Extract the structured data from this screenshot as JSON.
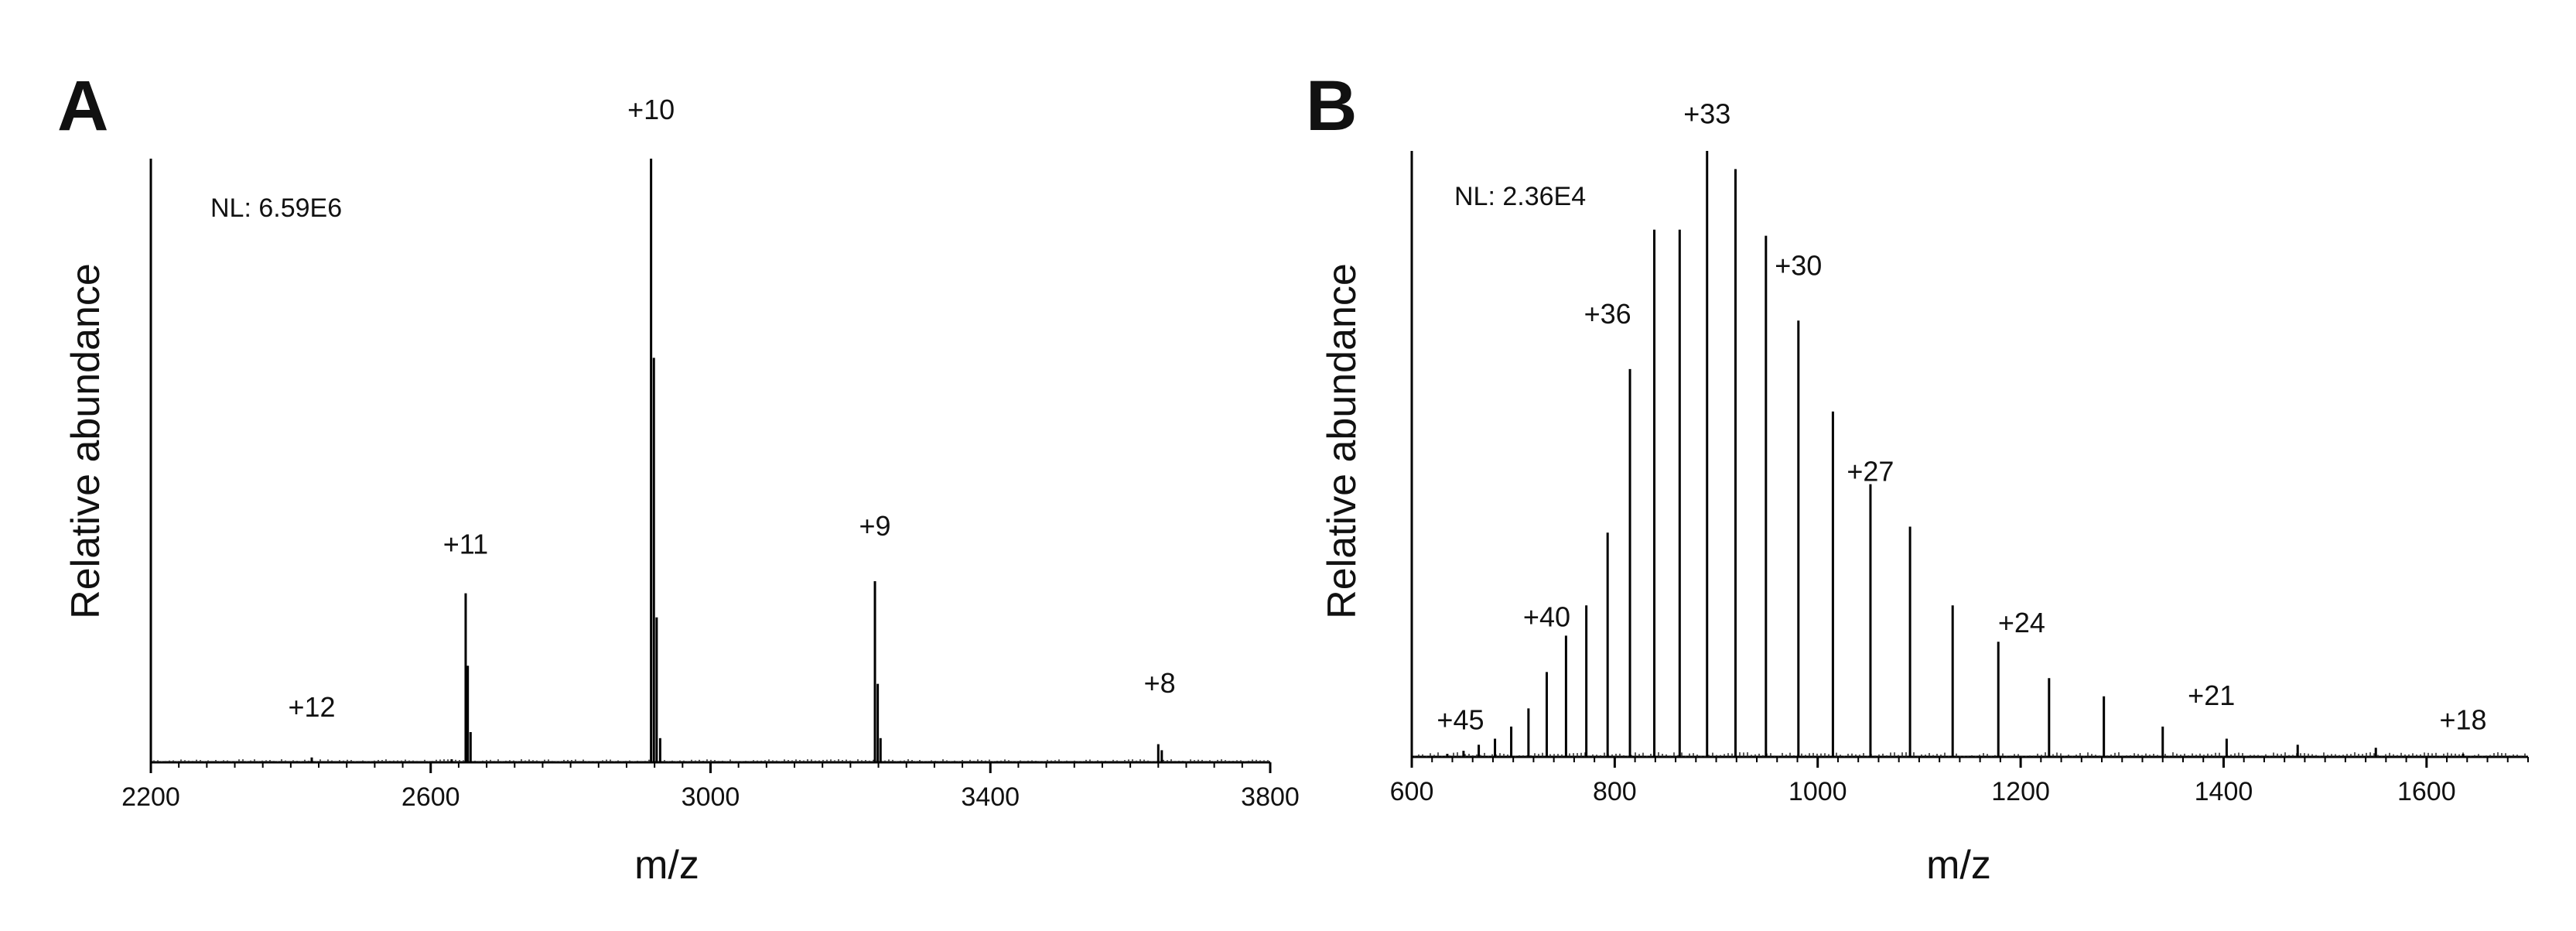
{
  "chart_data": [
    {
      "type": "bar",
      "panel": "A",
      "nl": "NL: 6.59E6",
      "xlabel": "m/z",
      "ylabel": "Relative abundance",
      "xlim": [
        2200,
        3800
      ],
      "ylim": [
        0,
        100
      ],
      "xticks": [
        2200,
        2600,
        3000,
        3400,
        3800
      ],
      "tick_labels": [
        "2200",
        "2600",
        "3000",
        "3400",
        "3800"
      ],
      "grid": false,
      "peaks": [
        {
          "mz": 2430,
          "rel": 0.8
        },
        {
          "mz": 2630,
          "rel": 0.5
        },
        {
          "mz": 2650,
          "rel": 28
        },
        {
          "mz": 2653,
          "rel": 16
        },
        {
          "mz": 2657,
          "rel": 5
        },
        {
          "mz": 2915,
          "rel": 100
        },
        {
          "mz": 2919,
          "rel": 67
        },
        {
          "mz": 2923,
          "rel": 24
        },
        {
          "mz": 2928,
          "rel": 4
        },
        {
          "mz": 3235,
          "rel": 30
        },
        {
          "mz": 3239,
          "rel": 13
        },
        {
          "mz": 3243,
          "rel": 4
        },
        {
          "mz": 3640,
          "rel": 3
        },
        {
          "mz": 3645,
          "rel": 2
        }
      ],
      "annotations": [
        {
          "text": "+12",
          "mz": 2430,
          "rel": 6
        },
        {
          "text": "+11",
          "mz": 2650,
          "rel": 33
        },
        {
          "text": "+10",
          "mz": 2915,
          "rel": 105
        },
        {
          "text": "+9",
          "mz": 3235,
          "rel": 36
        },
        {
          "text": "+8",
          "mz": 3642,
          "rel": 10
        }
      ]
    },
    {
      "type": "bar",
      "panel": "B",
      "nl": "NL: 2.36E4",
      "xlabel": "m/z",
      "ylabel": "Relative abundance",
      "xlim": [
        600,
        1700
      ],
      "ylim": [
        0,
        100
      ],
      "xticks": [
        600,
        800,
        1000,
        1200,
        1400,
        1600
      ],
      "tick_labels": [
        "600",
        "800",
        "1000",
        "1200",
        "1400",
        "1600"
      ],
      "grid": false,
      "peaks": [
        {
          "mz": 635,
          "rel": 0.5
        },
        {
          "mz": 651,
          "rel": 1
        },
        {
          "mz": 666,
          "rel": 2
        },
        {
          "mz": 682,
          "rel": 3
        },
        {
          "mz": 698,
          "rel": 5
        },
        {
          "mz": 715,
          "rel": 8
        },
        {
          "mz": 733,
          "rel": 14
        },
        {
          "mz": 752,
          "rel": 20
        },
        {
          "mz": 772,
          "rel": 25
        },
        {
          "mz": 793,
          "rel": 37
        },
        {
          "mz": 815,
          "rel": 64
        },
        {
          "mz": 839,
          "rel": 87
        },
        {
          "mz": 864,
          "rel": 87
        },
        {
          "mz": 891,
          "rel": 100
        },
        {
          "mz": 919,
          "rel": 97
        },
        {
          "mz": 949,
          "rel": 86
        },
        {
          "mz": 981,
          "rel": 72
        },
        {
          "mz": 1015,
          "rel": 57
        },
        {
          "mz": 1052,
          "rel": 45
        },
        {
          "mz": 1091,
          "rel": 38
        },
        {
          "mz": 1133,
          "rel": 25
        },
        {
          "mz": 1178,
          "rel": 19
        },
        {
          "mz": 1228,
          "rel": 13
        },
        {
          "mz": 1282,
          "rel": 10
        },
        {
          "mz": 1340,
          "rel": 5
        },
        {
          "mz": 1403,
          "rel": 3
        },
        {
          "mz": 1473,
          "rel": 2
        },
        {
          "mz": 1550,
          "rel": 1.5
        },
        {
          "mz": 1636,
          "rel": 0.5
        }
      ],
      "annotations": [
        {
          "text": "+45",
          "mz": 648,
          "rel": 3
        },
        {
          "text": "+40",
          "mz": 733,
          "rel": 20
        },
        {
          "text": "+36",
          "mz": 793,
          "rel": 70
        },
        {
          "text": "+33",
          "mz": 891,
          "rel": 103
        },
        {
          "text": "+30",
          "mz": 981,
          "rel": 78
        },
        {
          "text": "+27",
          "mz": 1052,
          "rel": 44
        },
        {
          "text": "+24",
          "mz": 1201,
          "rel": 19
        },
        {
          "text": "+21",
          "mz": 1388,
          "rel": 7
        },
        {
          "text": "+18",
          "mz": 1636,
          "rel": 3
        }
      ]
    }
  ]
}
